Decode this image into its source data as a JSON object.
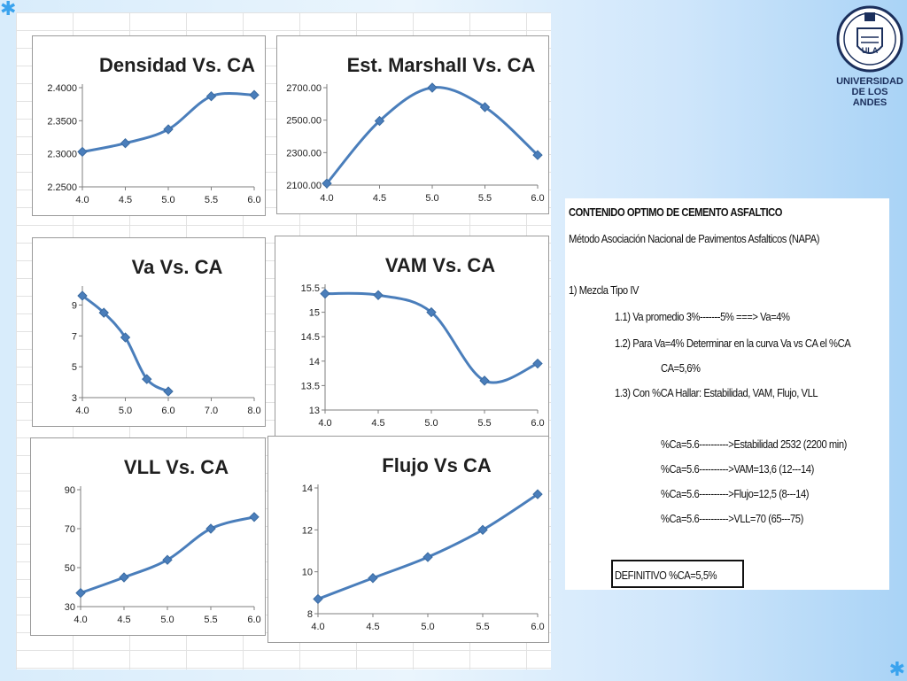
{
  "charts": [
    {
      "id": "densidad",
      "title": "Densidad Vs. CA",
      "x": [
        4.0,
        4.5,
        5.0,
        5.5,
        6.0
      ],
      "y": [
        2.303,
        2.316,
        2.337,
        2.387,
        2.389
      ],
      "xlim": [
        4.0,
        6.0
      ],
      "ylim": [
        2.25,
        2.4
      ],
      "xticks": [
        "4.0",
        "4.5",
        "5.0",
        "5.5",
        "6.0"
      ],
      "yticks": [
        "2.2500",
        "2.3000",
        "2.3500",
        "2.4000"
      ],
      "smooth": true
    },
    {
      "id": "marshall",
      "title": "Est. Marshall Vs. CA",
      "x": [
        4.0,
        4.5,
        5.0,
        5.5,
        6.0
      ],
      "y": [
        2110,
        2495,
        2700,
        2580,
        2285
      ],
      "xlim": [
        4.0,
        6.0
      ],
      "ylim": [
        2100,
        2700
      ],
      "xticks": [
        "4.0",
        "4.5",
        "5.0",
        "5.5",
        "6.0"
      ],
      "yticks": [
        "2100.00",
        "2300.00",
        "2500.00",
        "2700.00"
      ],
      "smooth": true
    },
    {
      "id": "va",
      "title": "Va Vs. CA",
      "x": [
        4.0,
        4.5,
        5.0,
        5.5,
        6.0
      ],
      "y": [
        9.6,
        8.5,
        6.9,
        4.2,
        3.4
      ],
      "xlim": [
        4.0,
        8.0
      ],
      "ylim": [
        3,
        10
      ],
      "xticks": [
        "4.0",
        "5.0",
        "6.0",
        "7.0",
        "8.0"
      ],
      "yticks": [
        "3",
        "5",
        "7",
        "9"
      ],
      "smooth": true
    },
    {
      "id": "vam",
      "title": "VAM Vs. CA",
      "x": [
        4.0,
        4.5,
        5.0,
        5.5,
        6.0
      ],
      "y": [
        15.38,
        15.35,
        15.0,
        13.6,
        13.95
      ],
      "xlim": [
        4.0,
        6.0
      ],
      "ylim": [
        13,
        15.5
      ],
      "xticks": [
        "4.0",
        "4.5",
        "5.0",
        "5.5",
        "6.0"
      ],
      "yticks": [
        "13",
        "13.5",
        "14",
        "14.5",
        "15",
        "15.5"
      ],
      "smooth": true
    },
    {
      "id": "vll",
      "title": "VLL Vs. CA",
      "x": [
        4.0,
        4.5,
        5.0,
        5.5,
        6.0
      ],
      "y": [
        37,
        45,
        54,
        70,
        76
      ],
      "xlim": [
        4.0,
        6.0
      ],
      "ylim": [
        30,
        90
      ],
      "xticks": [
        "4.0",
        "4.5",
        "5.0",
        "5.5",
        "6.0"
      ],
      "yticks": [
        "30",
        "50",
        "70",
        "90"
      ],
      "smooth": true
    },
    {
      "id": "flujo",
      "title": "Flujo Vs CA",
      "x": [
        4.0,
        4.5,
        5.0,
        5.5,
        6.0
      ],
      "y": [
        8.7,
        9.7,
        10.7,
        12.0,
        13.7
      ],
      "xlim": [
        4.0,
        6.0
      ],
      "ylim": [
        8,
        14
      ],
      "xticks": [
        "4.0",
        "4.5",
        "5.0",
        "5.5",
        "6.0"
      ],
      "yticks": [
        "8",
        "10",
        "12",
        "14"
      ],
      "smooth": true
    }
  ],
  "chart_data": [
    {
      "type": "line",
      "title": "Densidad Vs. CA",
      "x": [
        4.0,
        4.5,
        5.0,
        5.5,
        6.0
      ],
      "series": [
        {
          "values": [
            2.303,
            2.316,
            2.337,
            2.387,
            2.389
          ]
        }
      ],
      "xlim": [
        4.0,
        6.0
      ],
      "ylim": [
        2.25,
        2.4
      ]
    },
    {
      "type": "line",
      "title": "Est. Marshall Vs. CA",
      "x": [
        4.0,
        4.5,
        5.0,
        5.5,
        6.0
      ],
      "series": [
        {
          "values": [
            2110,
            2495,
            2700,
            2580,
            2285
          ]
        }
      ],
      "xlim": [
        4.0,
        6.0
      ],
      "ylim": [
        2100,
        2700
      ]
    },
    {
      "type": "line",
      "title": "Va Vs. CA",
      "x": [
        4.0,
        4.5,
        5.0,
        5.5,
        6.0
      ],
      "series": [
        {
          "values": [
            9.6,
            8.5,
            6.9,
            4.2,
            3.4
          ]
        }
      ],
      "xlim": [
        4.0,
        8.0
      ],
      "ylim": [
        3,
        10
      ]
    },
    {
      "type": "line",
      "title": "VAM Vs. CA",
      "x": [
        4.0,
        4.5,
        5.0,
        5.5,
        6.0
      ],
      "series": [
        {
          "values": [
            15.38,
            15.35,
            15.0,
            13.6,
            13.95
          ]
        }
      ],
      "xlim": [
        4.0,
        6.0
      ],
      "ylim": [
        13,
        15.5
      ]
    },
    {
      "type": "line",
      "title": "VLL Vs. CA",
      "x": [
        4.0,
        4.5,
        5.0,
        5.5,
        6.0
      ],
      "series": [
        {
          "values": [
            37,
            45,
            54,
            70,
            76
          ]
        }
      ],
      "xlim": [
        4.0,
        6.0
      ],
      "ylim": [
        30,
        90
      ]
    },
    {
      "type": "line",
      "title": "Flujo Vs CA",
      "x": [
        4.0,
        4.5,
        5.0,
        5.5,
        6.0
      ],
      "series": [
        {
          "values": [
            8.7,
            9.7,
            10.7,
            12.0,
            13.7
          ]
        }
      ],
      "xlim": [
        4.0,
        6.0
      ],
      "ylim": [
        8,
        14
      ]
    }
  ],
  "colors": {
    "line": "#4a7ebb",
    "marker": "#4a7ebb"
  },
  "text": {
    "heading": "CONTENIDO OPTIMO DE CEMENTO ASFALTICO",
    "method": "Método Asociación Nacional de Pavimentos Asfalticos (NAPA)",
    "mix": "1) Mezcla Tipo IV",
    "step1": "1.1) Va promedio 3%-------5% ===> Va=4%",
    "step2": "1.2) Para Va=4% Determinar en la curva Va vs CA el %CA",
    "ca": "CA=5,6%",
    "step3": "1.3) Con %CA Hallar: Estabilidad, VAM, Flujo, VLL",
    "r1": "%Ca=5.6---------->Estabilidad 2532 (2200 min)",
    "r2": "%Ca=5.6---------->VAM=13,6 (12---14)",
    "r3": "%Ca=5.6---------->Flujo=12,5 (8---14)",
    "r4": "%Ca=5.6---------->VLL=70 (65---75)",
    "definitivo": "DEFINITIVO  %CA=5,5%"
  },
  "logo": {
    "line1": "UNIVERSIDAD",
    "line2": "DE LOS ANDES"
  },
  "icons": {
    "corners": "star-icon"
  }
}
